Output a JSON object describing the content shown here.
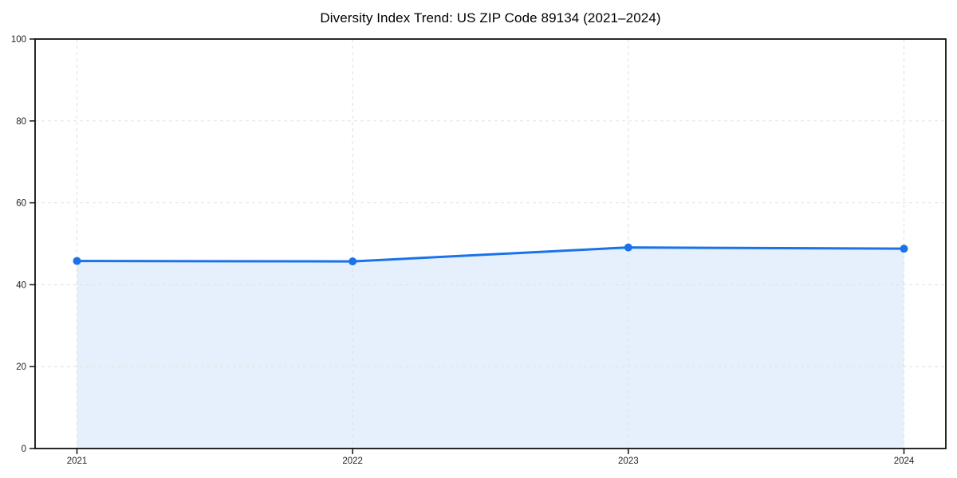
{
  "chart_data": {
    "type": "area",
    "title": "Diversity Index Trend: US ZIP Code 89134 (2021–2024)",
    "categories": [
      "2021",
      "2022",
      "2023",
      "2024"
    ],
    "series": [
      {
        "name": "Diversity Index",
        "values": [
          45.8,
          45.7,
          49.1,
          48.8
        ]
      }
    ],
    "xlabel": "",
    "ylabel": "",
    "ylim": [
      0,
      100
    ],
    "yticks": [
      0,
      20,
      40,
      60,
      80,
      100
    ],
    "grid": true,
    "grid_style": "dashed",
    "legend": false,
    "marker": "circle",
    "colors": {
      "line": "#1a73e8",
      "marker": "#1a73e8",
      "fill": "#1a73e8",
      "fill_opacity": 0.11,
      "grid": "#e0e0e0",
      "axis": "#111111",
      "tick_label": "#222222",
      "title": "#000000",
      "background": "#ffffff"
    }
  }
}
